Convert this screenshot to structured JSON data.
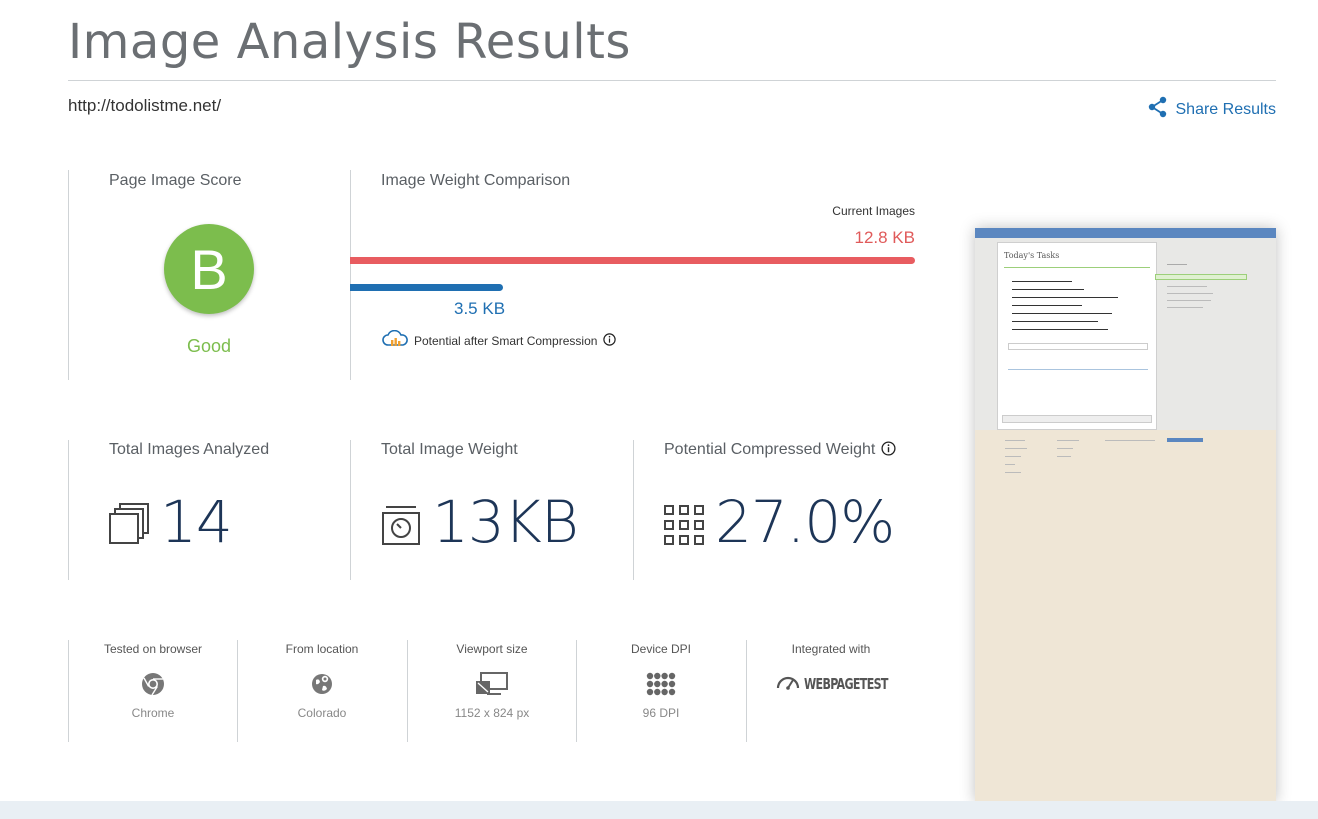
{
  "header": {
    "title": "Image Analysis Results",
    "url": "http://todolistme.net/",
    "share_label": "Share Results"
  },
  "score": {
    "label": "Page Image Score",
    "grade": "B",
    "grade_text": "Good",
    "grade_color": "#7cbd4d"
  },
  "weight_comparison": {
    "label": "Image Weight Comparison",
    "current_label": "Current Images",
    "current_value": "12.8 KB",
    "potential_value": "3.5 KB",
    "potential_label": "Potential after Smart Compression",
    "current_color": "#e85c60",
    "potential_color": "#1f6fb2"
  },
  "stats": {
    "total_images_label": "Total Images Analyzed",
    "total_images_value": "14",
    "total_weight_label": "Total Image Weight",
    "total_weight_value": "13KB",
    "compressed_label": "Potential Compressed Weight",
    "compressed_value": "27.0%"
  },
  "meta": {
    "browser_label": "Tested on browser",
    "browser_value": "Chrome",
    "location_label": "From location",
    "location_value": "Colorado",
    "viewport_label": "Viewport size",
    "viewport_value": "1152 x 824 px",
    "dpi_label": "Device DPI",
    "dpi_value": "96 DPI",
    "integrated_label": "Integrated with",
    "integrated_value": "WEBPAGETEST"
  },
  "preview": {
    "card_title": "Today's Tasks"
  }
}
